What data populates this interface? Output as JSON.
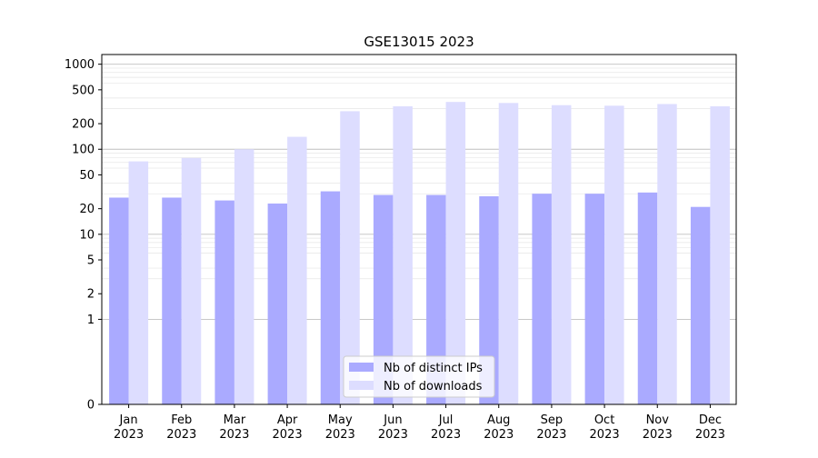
{
  "chart_data": {
    "type": "bar",
    "title": "GSE13015 2023",
    "xlabel": "",
    "ylabel": "",
    "y_scale": "symlog",
    "ylim": [
      0,
      1300
    ],
    "y_ticks": [
      0,
      1,
      2,
      5,
      10,
      20,
      50,
      100,
      200,
      500,
      1000
    ],
    "grid": true,
    "legend_position": "bottom-center",
    "categories": [
      [
        "Jan",
        "2023"
      ],
      [
        "Feb",
        "2023"
      ],
      [
        "Mar",
        "2023"
      ],
      [
        "Apr",
        "2023"
      ],
      [
        "May",
        "2023"
      ],
      [
        "Jun",
        "2023"
      ],
      [
        "Jul",
        "2023"
      ],
      [
        "Aug",
        "2023"
      ],
      [
        "Sep",
        "2023"
      ],
      [
        "Oct",
        "2023"
      ],
      [
        "Nov",
        "2023"
      ],
      [
        "Dec",
        "2023"
      ]
    ],
    "series": [
      {
        "name": "Nb of distinct IPs",
        "color": "#aaaaff",
        "values": [
          27,
          27,
          25,
          23,
          32,
          29,
          29,
          28,
          30,
          30,
          31,
          21
        ]
      },
      {
        "name": "Nb of downloads",
        "color": "#ddddff",
        "values": [
          72,
          79,
          100,
          140,
          280,
          320,
          360,
          350,
          330,
          325,
          340,
          320
        ]
      }
    ]
  }
}
